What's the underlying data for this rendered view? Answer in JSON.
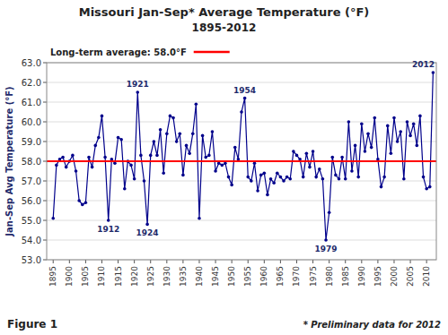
{
  "chart_data": {
    "type": "line",
    "title": "Missouri Jan-Sep* Average Temperature (°F)",
    "subtitle": "1895-2012",
    "y_label": "Jan-Sep Avg Temperature (°F)",
    "figure_label": "Figure 1",
    "note": "* Preliminary data for 2012",
    "grid": true,
    "x": [
      1895,
      1896,
      1897,
      1898,
      1899,
      1900,
      1901,
      1902,
      1903,
      1904,
      1905,
      1906,
      1907,
      1908,
      1909,
      1910,
      1911,
      1912,
      1913,
      1914,
      1915,
      1916,
      1917,
      1918,
      1919,
      1920,
      1921,
      1922,
      1923,
      1924,
      1925,
      1926,
      1927,
      1928,
      1929,
      1930,
      1931,
      1932,
      1933,
      1934,
      1935,
      1936,
      1937,
      1938,
      1939,
      1940,
      1941,
      1942,
      1943,
      1944,
      1945,
      1946,
      1947,
      1948,
      1949,
      1950,
      1951,
      1952,
      1953,
      1954,
      1955,
      1956,
      1957,
      1958,
      1959,
      1960,
      1961,
      1962,
      1963,
      1964,
      1965,
      1966,
      1967,
      1968,
      1969,
      1970,
      1971,
      1972,
      1973,
      1974,
      1975,
      1976,
      1977,
      1978,
      1979,
      1980,
      1981,
      1982,
      1983,
      1984,
      1985,
      1986,
      1987,
      1988,
      1989,
      1990,
      1991,
      1992,
      1993,
      1994,
      1995,
      1996,
      1997,
      1998,
      1999,
      2000,
      2001,
      2002,
      2003,
      2004,
      2005,
      2006,
      2007,
      2008,
      2009,
      2010,
      2011,
      2012
    ],
    "series": [
      {
        "color": "#00008B",
        "marker": "circle",
        "line_style": "solid",
        "values": [
          55.1,
          57.8,
          58.1,
          58.2,
          57.7,
          58.0,
          58.3,
          57.5,
          56.0,
          55.8,
          55.9,
          58.2,
          57.7,
          58.8,
          59.2,
          60.3,
          58.2,
          55.0,
          58.1,
          57.9,
          59.2,
          59.1,
          56.6,
          58.0,
          57.8,
          57.1,
          61.5,
          58.3,
          57.0,
          54.8,
          58.3,
          59.0,
          58.3,
          59.6,
          57.4,
          59.4,
          60.3,
          60.2,
          59.0,
          59.4,
          57.3,
          58.8,
          58.4,
          59.4,
          60.9,
          55.1,
          59.3,
          58.2,
          58.3,
          59.5,
          57.5,
          57.9,
          57.8,
          57.9,
          57.2,
          56.8,
          58.7,
          58.1,
          60.5,
          61.2,
          57.2,
          57.0,
          57.9,
          56.5,
          57.3,
          57.4,
          56.3,
          57.1,
          56.9,
          57.4,
          57.2,
          57.0,
          57.2,
          57.1,
          58.5,
          58.3,
          58.1,
          57.2,
          58.4,
          57.7,
          58.5,
          57.2,
          57.6,
          57.1,
          54.0,
          55.4,
          58.2,
          57.3,
          57.1,
          58.2,
          57.1,
          60.0,
          57.5,
          58.8,
          57.2,
          59.9,
          58.5,
          59.4,
          58.7,
          60.2,
          58.1,
          56.7,
          57.2,
          59.8,
          58.4,
          60.2,
          59.0,
          59.5,
          57.1,
          60.0,
          59.3,
          59.9,
          58.8,
          60.3,
          57.2,
          56.6,
          56.7,
          62.5
        ]
      }
    ],
    "reference_line": {
      "value": 58.0,
      "label": "Long-term average: 58.0°F",
      "color": "red"
    },
    "annotations": [
      {
        "x": 1921,
        "y": 61.5,
        "label": "1921"
      },
      {
        "x": 1912,
        "y": 55.0,
        "label": "1912"
      },
      {
        "x": 1924,
        "y": 54.8,
        "label": "1924"
      },
      {
        "x": 1954,
        "y": 61.2,
        "label": "1954"
      },
      {
        "x": 1979,
        "y": 54.0,
        "label": "1979"
      },
      {
        "x": 2012,
        "y": 62.5,
        "label": "2012"
      }
    ],
    "xlim": [
      1893,
      2013
    ],
    "xticks": [
      1895,
      1900,
      1905,
      1910,
      1915,
      1920,
      1925,
      1930,
      1935,
      1940,
      1945,
      1950,
      1955,
      1960,
      1965,
      1970,
      1975,
      1980,
      1985,
      1990,
      1995,
      2000,
      2005,
      2010
    ],
    "ylim": [
      53.0,
      63.0
    ],
    "yticks": [
      {
        "value": 53.0,
        "label": "53.0"
      },
      {
        "value": 54.0,
        "label": "54.0"
      },
      {
        "value": 55.0,
        "label": "55.0"
      },
      {
        "value": 56.0,
        "label": "56.0"
      },
      {
        "value": 57.0,
        "label": "57.0"
      },
      {
        "value": 58.0,
        "label": "58.0"
      },
      {
        "value": 59.0,
        "label": "59.0"
      },
      {
        "value": 60.0,
        "label": "60.0"
      },
      {
        "value": 61.0,
        "label": "61.0"
      },
      {
        "value": 62.0,
        "label": "62.0"
      },
      {
        "value": 63.0,
        "label": "63.0"
      }
    ]
  }
}
